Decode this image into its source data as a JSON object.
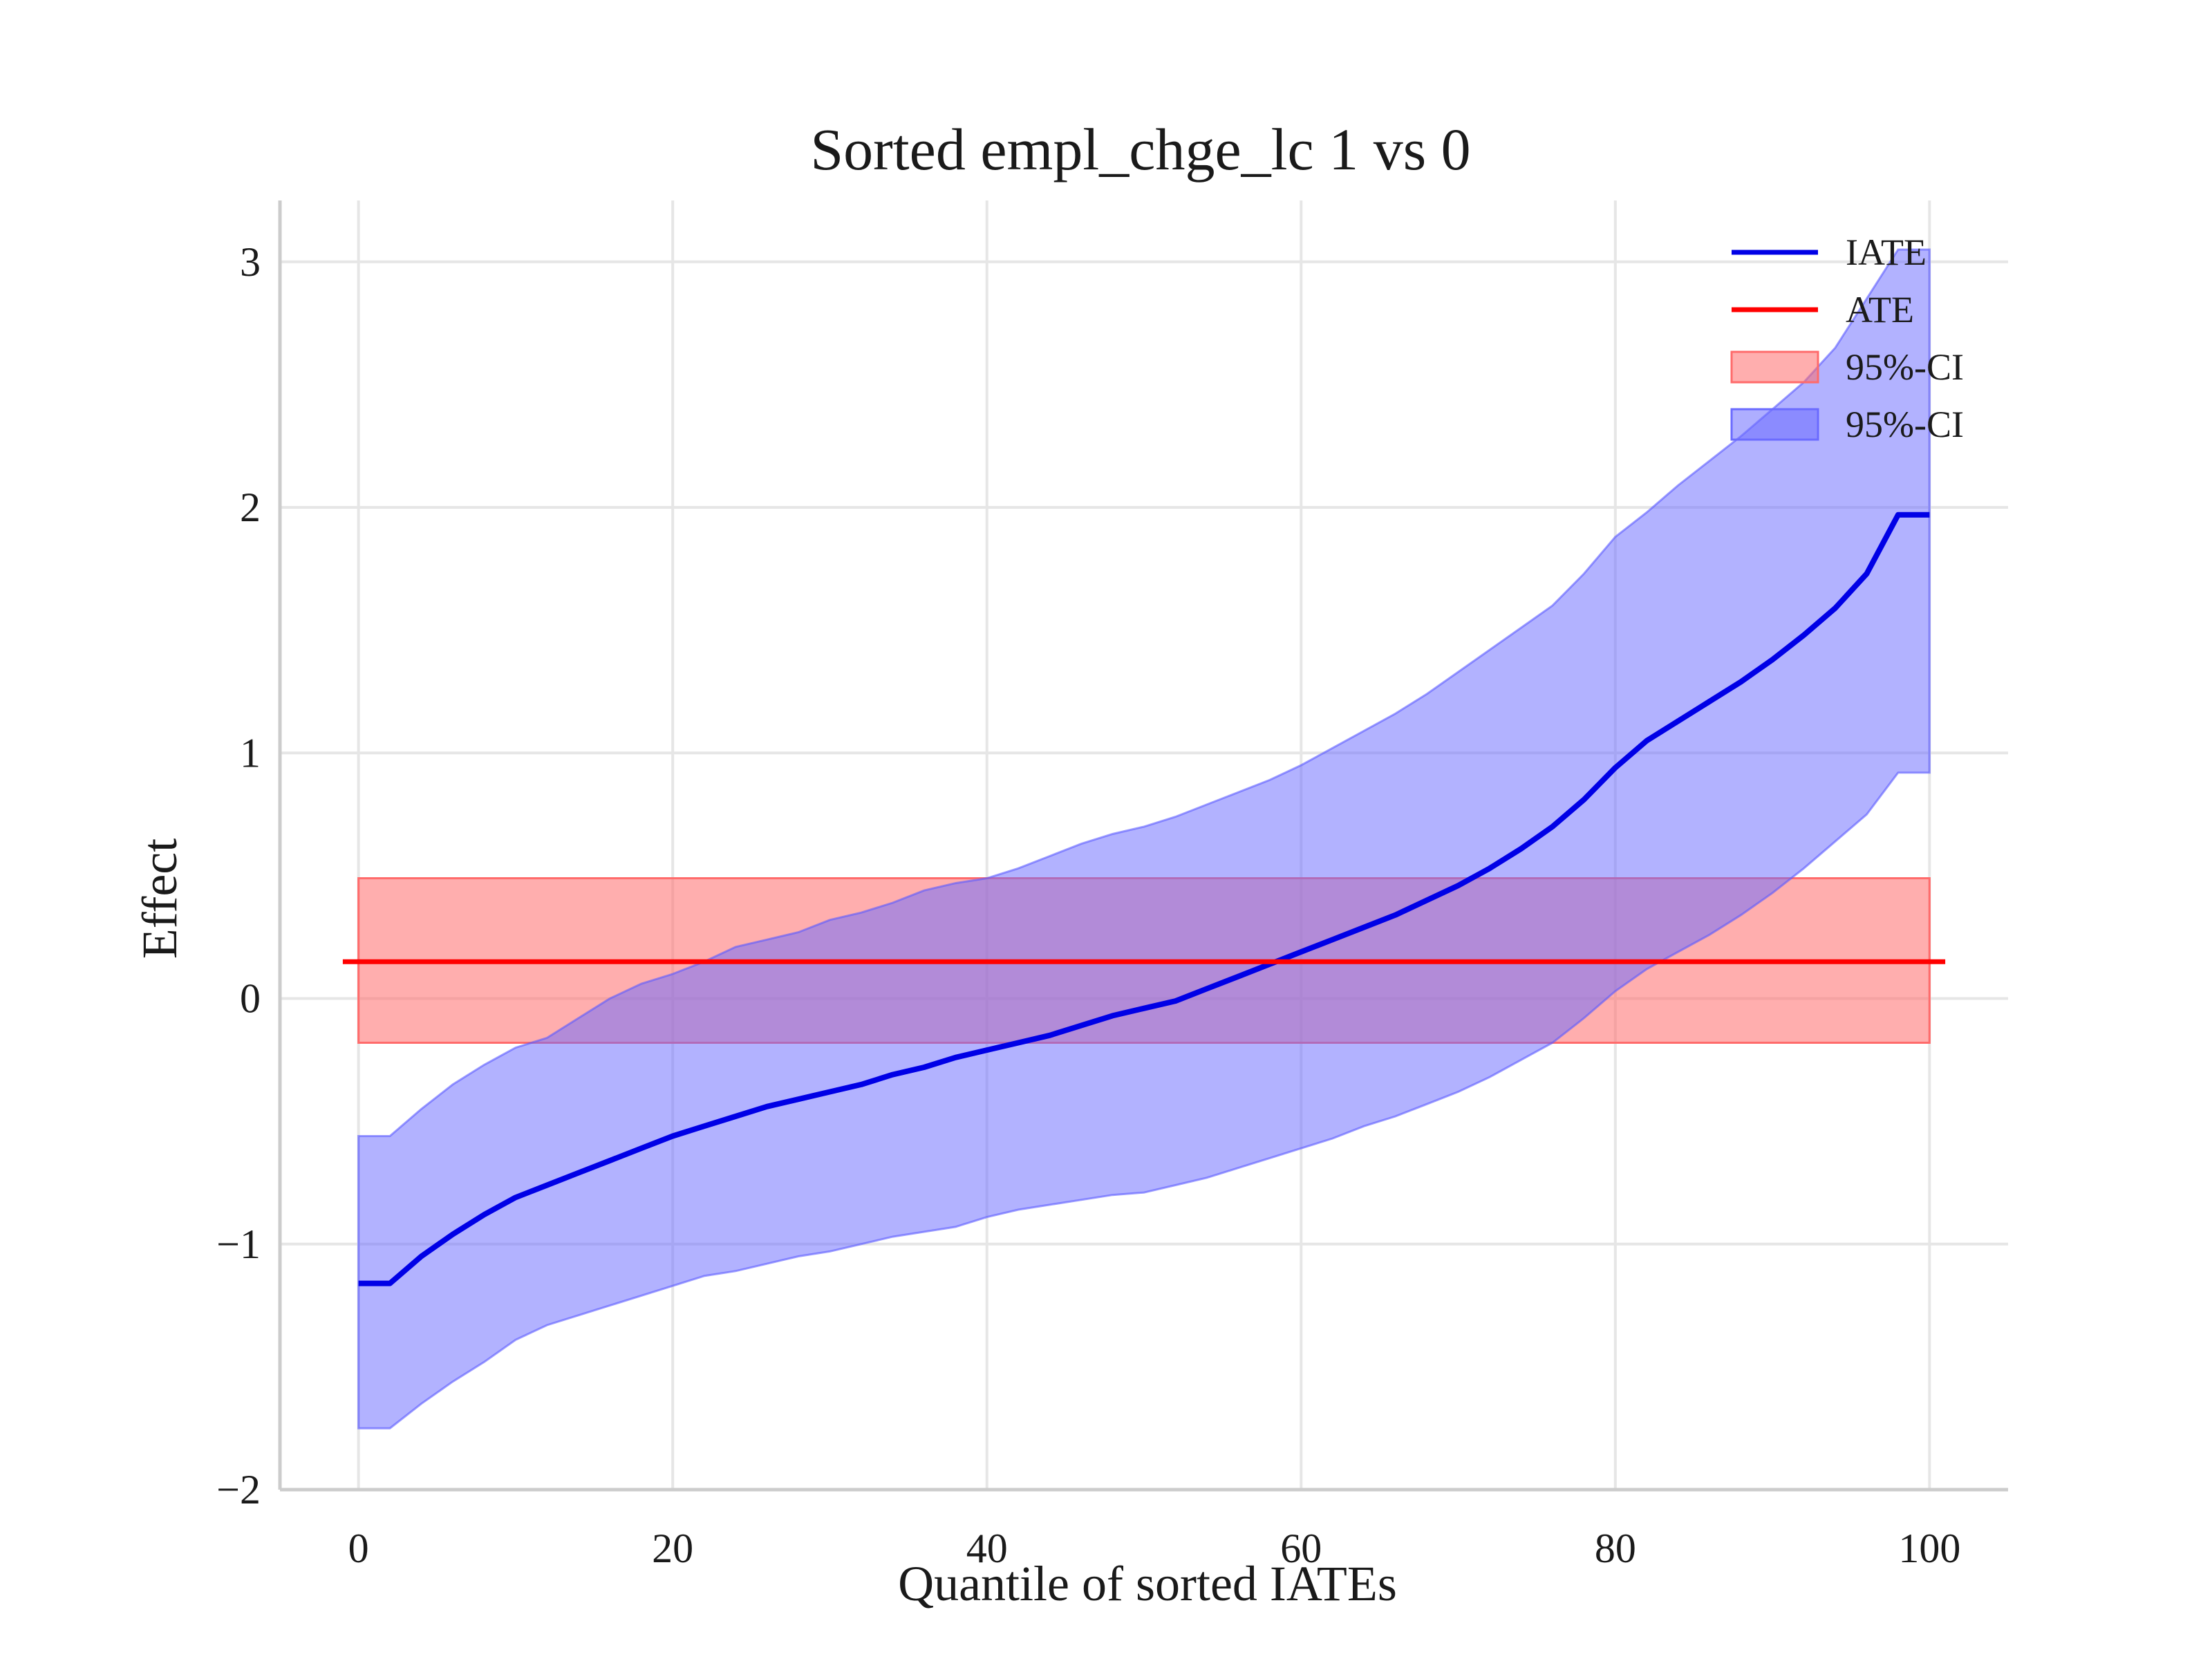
{
  "chart_data": {
    "type": "line",
    "title": "Sorted empl_chge_lc 1 vs 0",
    "xlabel": "Quantile of sorted IATEs",
    "ylabel": "Effect",
    "xlim": [
      -5,
      105
    ],
    "ylim": [
      -2,
      3.25
    ],
    "xticks": [
      0,
      20,
      40,
      60,
      80,
      100
    ],
    "xtick_labels": [
      "0",
      "20",
      "40",
      "60",
      "80",
      "100"
    ],
    "yticks": [
      -2,
      -1,
      0,
      1,
      2,
      3
    ],
    "ytick_labels": [
      "−2",
      "−1",
      "0",
      "1",
      "2",
      "3"
    ],
    "grid": true,
    "legend_position": "top-right",
    "colors": {
      "iate": "#0000e6",
      "ate": "#ff0000",
      "ate_ci_fill": "#ff6b6b",
      "iate_ci_fill": "#6b6bff"
    },
    "series": [
      {
        "name": "IATE",
        "x": [
          0,
          2,
          4,
          6,
          8,
          10,
          12,
          14,
          16,
          18,
          20,
          22,
          24,
          26,
          28,
          30,
          32,
          34,
          36,
          38,
          40,
          42,
          44,
          46,
          48,
          50,
          52,
          54,
          56,
          58,
          60,
          62,
          64,
          66,
          68,
          70,
          72,
          74,
          76,
          78,
          80,
          82,
          84,
          86,
          88,
          90,
          92,
          94,
          96,
          98,
          100
        ],
        "y": [
          -1.16,
          -1.16,
          -1.05,
          -0.96,
          -0.88,
          -0.81,
          -0.76,
          -0.71,
          -0.66,
          -0.61,
          -0.56,
          -0.52,
          -0.48,
          -0.44,
          -0.41,
          -0.38,
          -0.35,
          -0.31,
          -0.28,
          -0.24,
          -0.21,
          -0.18,
          -0.15,
          -0.11,
          -0.07,
          -0.04,
          -0.01,
          0.04,
          0.09,
          0.14,
          0.19,
          0.24,
          0.29,
          0.34,
          0.4,
          0.46,
          0.53,
          0.61,
          0.7,
          0.81,
          0.94,
          1.05,
          1.13,
          1.21,
          1.29,
          1.38,
          1.48,
          1.59,
          1.73,
          1.97,
          1.97
        ]
      },
      {
        "name": "ATE",
        "x": [
          -1,
          101
        ],
        "y": [
          0.15,
          0.15
        ]
      }
    ],
    "bands": [
      {
        "name": "95%-CI",
        "of": "ATE",
        "x": [
          0,
          100
        ],
        "lower": [
          -0.18,
          -0.18
        ],
        "upper": [
          0.49,
          0.49
        ]
      },
      {
        "name": "95%-CI",
        "of": "IATE",
        "x": [
          0,
          2,
          4,
          6,
          8,
          10,
          12,
          14,
          16,
          18,
          20,
          22,
          24,
          26,
          28,
          30,
          32,
          34,
          36,
          38,
          40,
          42,
          44,
          46,
          48,
          50,
          52,
          54,
          56,
          58,
          60,
          62,
          64,
          66,
          68,
          70,
          72,
          74,
          76,
          78,
          80,
          82,
          84,
          86,
          88,
          90,
          92,
          94,
          96,
          98,
          100
        ],
        "lower": [
          -1.75,
          -1.75,
          -1.65,
          -1.56,
          -1.48,
          -1.39,
          -1.33,
          -1.29,
          -1.25,
          -1.21,
          -1.17,
          -1.13,
          -1.11,
          -1.08,
          -1.05,
          -1.03,
          -1.0,
          -0.97,
          -0.95,
          -0.93,
          -0.89,
          -0.86,
          -0.84,
          -0.82,
          -0.8,
          -0.79,
          -0.76,
          -0.73,
          -0.69,
          -0.65,
          -0.61,
          -0.57,
          -0.52,
          -0.48,
          -0.43,
          -0.38,
          -0.32,
          -0.25,
          -0.18,
          -0.08,
          0.03,
          0.12,
          0.19,
          0.26,
          0.34,
          0.43,
          0.53,
          0.64,
          0.75,
          0.92,
          0.92
        ],
        "upper": [
          -0.56,
          -0.56,
          -0.45,
          -0.35,
          -0.27,
          -0.2,
          -0.16,
          -0.08,
          0.0,
          0.06,
          0.1,
          0.15,
          0.21,
          0.24,
          0.27,
          0.32,
          0.35,
          0.39,
          0.44,
          0.47,
          0.49,
          0.53,
          0.58,
          0.63,
          0.67,
          0.7,
          0.74,
          0.79,
          0.84,
          0.89,
          0.95,
          1.02,
          1.09,
          1.16,
          1.24,
          1.33,
          1.42,
          1.51,
          1.6,
          1.73,
          1.88,
          1.98,
          2.09,
          2.19,
          2.29,
          2.4,
          2.51,
          2.65,
          2.85,
          3.05,
          3.05
        ]
      }
    ],
    "legend": [
      {
        "label": "IATE",
        "kind": "line",
        "color": "#0000e6"
      },
      {
        "label": "ATE",
        "kind": "line",
        "color": "#ff0000"
      },
      {
        "label": "95%-CI",
        "kind": "patch",
        "color": "#ff6b6b"
      },
      {
        "label": "95%-CI",
        "kind": "patch",
        "color": "#6b6bff"
      }
    ]
  }
}
